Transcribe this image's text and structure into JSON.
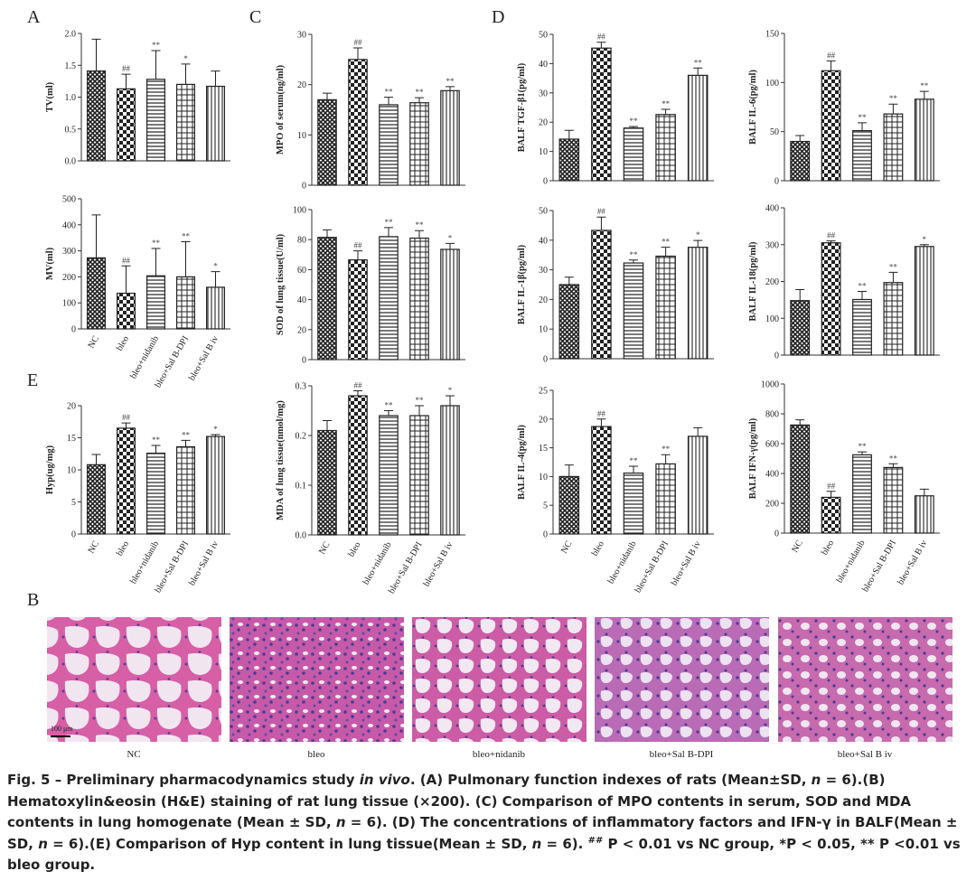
{
  "panels": [
    "A",
    "C",
    "D",
    "E",
    "B"
  ],
  "chart_data": [
    {
      "type": "bar",
      "ylabel": "TV(ml)",
      "categories": [
        null,
        null,
        null,
        null,
        null
      ],
      "values": [
        1.41,
        1.13,
        1.28,
        1.2,
        1.17
      ],
      "errors": [
        0.5,
        0.23,
        0.45,
        0.32,
        0.24
      ],
      "annotations": [
        null,
        "##",
        "**",
        "*",
        null
      ],
      "ylim": [
        0,
        2
      ],
      "yticks": [
        {
          "value": 0,
          "label": "0.0"
        },
        {
          "value": 0.5,
          "label": "0.5"
        },
        {
          "value": 1,
          "label": "1.0"
        },
        {
          "value": 1.5,
          "label": "1.5"
        },
        {
          "value": 2,
          "label": "2.0"
        }
      ]
    },
    {
      "type": "bar",
      "ylabel": "MV(ml)",
      "categories": [
        "NC",
        "bleo",
        "bleo+nidanib",
        "bleo+Sal B-DPI",
        "bleo+Sal B iv"
      ],
      "values": [
        273,
        137,
        204,
        200,
        160
      ],
      "errors": [
        165,
        105,
        105,
        135,
        60
      ],
      "annotations": [
        null,
        "##",
        "**",
        "**",
        "*"
      ],
      "ylim": [
        0,
        500
      ],
      "yticks": [
        0,
        100,
        200,
        300,
        400,
        500
      ]
    },
    {
      "type": "bar",
      "ylabel": "Hyp(ug/mg)",
      "categories": [
        "NC",
        "bleo",
        "bleo+nidanib",
        "bleo+Sal B-DPI",
        "bleo+Sal B iv"
      ],
      "values": [
        10.8,
        16.5,
        12.6,
        13.6,
        15.2
      ],
      "errors": [
        1.6,
        0.8,
        1.2,
        1.0,
        0.3
      ],
      "annotations": [
        null,
        "##",
        "**",
        "**",
        "*"
      ],
      "ylim": [
        0,
        20
      ],
      "yticks": [
        0,
        5,
        10,
        15,
        20
      ]
    },
    {
      "type": "bar",
      "ylabel": "MPO of serum(ng/ml)",
      "categories": [
        null,
        null,
        null,
        null,
        null
      ],
      "values": [
        17,
        25,
        16,
        16.4,
        18.8
      ],
      "errors": [
        1.3,
        2.3,
        1.5,
        1.0,
        0.8
      ],
      "annotations": [
        null,
        "##",
        "**",
        "**",
        "**"
      ],
      "ylim": [
        0,
        30
      ],
      "yticks": [
        0,
        10,
        20,
        30
      ]
    },
    {
      "type": "bar",
      "ylabel": "SOD of lung tissue(U/ml)",
      "categories": [
        null,
        null,
        null,
        null,
        null
      ],
      "values": [
        81.5,
        66.5,
        82,
        81,
        73.5
      ],
      "errors": [
        5,
        6,
        6,
        5,
        4
      ],
      "annotations": [
        null,
        "##",
        "**",
        "**",
        "*"
      ],
      "ylim": [
        0,
        100
      ],
      "yticks": [
        0,
        20,
        40,
        60,
        80,
        100
      ]
    },
    {
      "type": "bar",
      "ylabel": "MDA of lung tissue(nmol/mg)",
      "categories": [
        "NC",
        "bleo",
        "bleo+nidanib",
        "bleo+Sal B-DPI",
        "bleo+Sal B iv"
      ],
      "values": [
        0.21,
        0.28,
        0.24,
        0.24,
        0.26
      ],
      "errors": [
        0.02,
        0.01,
        0.01,
        0.02,
        0.02
      ],
      "annotations": [
        null,
        "##",
        "**",
        "**",
        "*"
      ],
      "ylim": [
        0,
        0.3
      ],
      "yticks": [
        {
          "value": 0,
          "label": "0.0"
        },
        0.1,
        0.2,
        0.3
      ]
    },
    {
      "type": "bar",
      "ylabel": "BALF TGF-β1(pg/ml)",
      "categories": [
        null,
        null,
        null,
        null,
        null
      ],
      "values": [
        14.2,
        45.3,
        18,
        22.6,
        36
      ],
      "errors": [
        3,
        2,
        0.5,
        1.8,
        2.5
      ],
      "annotations": [
        null,
        "##",
        "**",
        "**",
        "**"
      ],
      "ylim": [
        0,
        50
      ],
      "yticks": [
        0,
        10,
        20,
        30,
        40,
        50
      ]
    },
    {
      "type": "bar",
      "ylabel": "BALF IL-1β(pg/ml)",
      "categories": [
        null,
        null,
        null,
        null,
        null
      ],
      "values": [
        25,
        43.3,
        32.3,
        34.6,
        37.6
      ],
      "errors": [
        2.5,
        4.5,
        1,
        3,
        2.3
      ],
      "annotations": [
        null,
        "##",
        "**",
        "**",
        "*"
      ],
      "ylim": [
        0,
        50
      ],
      "yticks": [
        0,
        10,
        20,
        30,
        40,
        50
      ]
    },
    {
      "type": "bar",
      "ylabel": "BALF IL-4(pg/ml)",
      "categories": [
        "NC",
        "bleo",
        "bleo+nidanib",
        "bleo+Sal B-DPI",
        "bleo+Sal B iv"
      ],
      "values": [
        10,
        18.7,
        10.6,
        12.2,
        17
      ],
      "errors": [
        2,
        1.3,
        1.2,
        1.6,
        1.5
      ],
      "annotations": [
        null,
        "##",
        "**",
        "**",
        null
      ],
      "ylim": [
        0,
        25
      ],
      "yticks": [
        0,
        5,
        10,
        15,
        20,
        25
      ]
    },
    {
      "type": "bar",
      "ylabel": "BALF IL-6(pg/ml)",
      "categories": [
        null,
        null,
        null,
        null,
        null
      ],
      "values": [
        40,
        112,
        51,
        68,
        83
      ],
      "errors": [
        6,
        10,
        8,
        10,
        8
      ],
      "annotations": [
        null,
        "##",
        "**",
        "**",
        "**"
      ],
      "ylim": [
        0,
        150
      ],
      "yticks": [
        0,
        50,
        100,
        150
      ]
    },
    {
      "type": "bar",
      "ylabel": "BALF IL-18(pg/ml)",
      "categories": [
        null,
        null,
        null,
        null,
        null
      ],
      "values": [
        148,
        305,
        151,
        197,
        295
      ],
      "errors": [
        30,
        5,
        22,
        28,
        5
      ],
      "annotations": [
        null,
        "##",
        "**",
        "**",
        "*"
      ],
      "ylim": [
        0,
        400
      ],
      "yticks": [
        0,
        100,
        200,
        300,
        400
      ]
    },
    {
      "type": "bar",
      "ylabel": "BALF IFN-γ(pg/ml)",
      "categories": [
        "NC",
        "bleo",
        "bleo+nidanib",
        "bleo+Sal B-DPI",
        "bleo+Sal B iv"
      ],
      "values": [
        725,
        240,
        525,
        440,
        250
      ],
      "errors": [
        35,
        40,
        20,
        25,
        45
      ],
      "annotations": [
        null,
        "##",
        "**",
        "**",
        null
      ],
      "ylim": [
        0,
        1000
      ],
      "yticks": [
        0,
        200,
        400,
        600,
        800,
        1000
      ]
    }
  ],
  "histology": {
    "labels": [
      "NC",
      "bleo",
      "bleo+nidanib",
      "bleo+Sal B-DPI",
      "bleo+Sal B iv"
    ],
    "scale_bar": "100 μm"
  },
  "caption": [
    "Fig. 5 – Preliminary pharmacodynamics study ",
    "in vivo",
    ". (A) Pulmonary function indexes of rats (Mean±SD, ",
    "n",
    " = 6).(B) Hematoxylin&eosin (H&E) staining of rat lung tissue (×200). (C) Comparison of MPO contents in serum, SOD and MDA contents in lung homogenate (Mean ± SD, ",
    "n",
    " = 6). (D) The concentrations of inflammatory factors and IFN-γ in BALF(Mean ± SD, ",
    "n",
    " = 6).(E) Comparison of Hyp content in lung tissue(Mean ± SD, ",
    "n",
    " = 6). ",
    "##",
    " P < 0.01 vs NC group, *P < 0.05, ** P <0.01 vs bleo group."
  ]
}
